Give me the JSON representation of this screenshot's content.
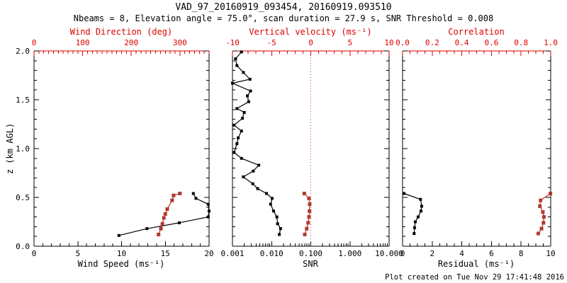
{
  "title": "VAD_97_20160919_093454, 20160919.093510",
  "subtitle": "Nbeams = 8, Elevation angle = 75.0°, scan duration = 27.9 s, SNR Threshold = 0.008",
  "footer": {
    "created_text": "Plot created on Tue Nov 29 17:41:48 2016"
  },
  "colors": {
    "axis_red": "#dd0000",
    "series_red": "#b03a2e",
    "series_black": "#000000",
    "zero_line_red": "#d04030",
    "axis_black": "#000000",
    "background": "#ffffff"
  },
  "chart_data": {
    "type": "line",
    "description": "VAD Doppler-lidar wind profile, three vertical-profile panels sharing height axis z 0-2 km AGL",
    "y_axis": {
      "label": "z (km AGL)",
      "range": [
        0,
        2
      ],
      "ticks": [
        {
          "v": 0.0,
          "label": "0.0"
        },
        {
          "v": 0.5,
          "label": "0.5"
        },
        {
          "v": 1.0,
          "label": "1.0"
        },
        {
          "v": 1.5,
          "label": "1.5"
        },
        {
          "v": 2.0,
          "label": "2.0"
        }
      ],
      "minor_step": 0.1
    },
    "panels": [
      {
        "id": "wind",
        "top_axis": {
          "label": "Wind Direction (deg)",
          "color": "red",
          "range": [
            0,
            360
          ],
          "minor_step": 10,
          "ticks": [
            {
              "v": 0,
              "label": "0"
            },
            {
              "v": 100,
              "label": "100"
            },
            {
              "v": 200,
              "label": "200"
            },
            {
              "v": 300,
              "label": "300"
            }
          ]
        },
        "bottom_axis": {
          "label": "Wind Speed (ms⁻¹)",
          "color": "black",
          "range": [
            0,
            20
          ],
          "minor_step": 1,
          "ticks": [
            {
              "v": 0,
              "label": "0"
            },
            {
              "v": 5,
              "label": "5"
            },
            {
              "v": 10,
              "label": "10"
            },
            {
              "v": 15,
              "label": "15"
            },
            {
              "v": 20,
              "label": "20"
            }
          ]
        },
        "series": [
          {
            "name": "wind_speed",
            "axis": "bottom",
            "color": "black",
            "points": [
              {
                "z": 0.11,
                "v": 9.7
              },
              {
                "z": 0.18,
                "v": 12.9
              },
              {
                "z": 0.24,
                "v": 16.6
              },
              {
                "z": 0.3,
                "v": 19.9
              },
              {
                "z": 0.36,
                "v": 20.0
              },
              {
                "z": 0.43,
                "v": 19.9
              },
              {
                "z": 0.49,
                "v": 18.5
              },
              {
                "z": 0.54,
                "v": 18.2
              }
            ]
          },
          {
            "name": "wind_direction",
            "axis": "top",
            "color": "red",
            "points": [
              {
                "z": 0.12,
                "v": 256
              },
              {
                "z": 0.18,
                "v": 261
              },
              {
                "z": 0.23,
                "v": 264
              },
              {
                "z": 0.29,
                "v": 267
              },
              {
                "z": 0.33,
                "v": 270
              },
              {
                "z": 0.38,
                "v": 274
              },
              {
                "z": 0.47,
                "v": 284
              },
              {
                "z": 0.52,
                "v": 287
              },
              {
                "z": 0.54,
                "v": 300
              }
            ]
          }
        ]
      },
      {
        "id": "snr",
        "top_axis": {
          "label": "Vertical velocity (ms⁻¹)",
          "color": "red",
          "range": [
            -10,
            10
          ],
          "minor_step": 1,
          "zero_line": true,
          "ticks": [
            {
              "v": -10,
              "label": "-10"
            },
            {
              "v": -5,
              "label": "-5"
            },
            {
              "v": 0,
              "label": "0"
            },
            {
              "v": 5,
              "label": "5"
            },
            {
              "v": 10,
              "label": "10"
            }
          ]
        },
        "bottom_axis": {
          "label": "SNR",
          "color": "black",
          "range": [
            0.001,
            10
          ],
          "scale": "log",
          "ticks": [
            {
              "v": 0.001,
              "label": "0.001"
            },
            {
              "v": 0.01,
              "label": "0.010"
            },
            {
              "v": 0.1,
              "label": "0.100"
            },
            {
              "v": 1,
              "label": "1.000"
            },
            {
              "v": 10,
              "label": "10.000"
            }
          ]
        },
        "series": [
          {
            "name": "snr",
            "axis": "bottom",
            "color": "black",
            "points": [
              {
                "z": 1.99,
                "v": 0.0017
              },
              {
                "z": 1.92,
                "v": 0.0012
              },
              {
                "z": 1.85,
                "v": 0.0013
              },
              {
                "z": 1.78,
                "v": 0.0019
              },
              {
                "z": 1.71,
                "v": 0.0028
              },
              {
                "z": 1.67,
                "v": 0.001
              },
              {
                "z": 1.59,
                "v": 0.0029
              },
              {
                "z": 1.54,
                "v": 0.0024
              },
              {
                "z": 1.48,
                "v": 0.0026
              },
              {
                "z": 1.41,
                "v": 0.0013
              },
              {
                "z": 1.37,
                "v": 0.002
              },
              {
                "z": 1.31,
                "v": 0.0018
              },
              {
                "z": 1.24,
                "v": 0.0011
              },
              {
                "z": 1.18,
                "v": 0.0017
              },
              {
                "z": 1.11,
                "v": 0.0014
              },
              {
                "z": 1.05,
                "v": 0.0013
              },
              {
                "z": 0.96,
                "v": 0.0011
              },
              {
                "z": 0.9,
                "v": 0.0017
              },
              {
                "z": 0.83,
                "v": 0.0047
              },
              {
                "z": 0.77,
                "v": 0.0034
              },
              {
                "z": 0.71,
                "v": 0.0019
              },
              {
                "z": 0.64,
                "v": 0.0033
              },
              {
                "z": 0.59,
                "v": 0.0044
              },
              {
                "z": 0.54,
                "v": 0.0074
              },
              {
                "z": 0.49,
                "v": 0.0103
              },
              {
                "z": 0.43,
                "v": 0.0094
              },
              {
                "z": 0.36,
                "v": 0.0112
              },
              {
                "z": 0.3,
                "v": 0.0136
              },
              {
                "z": 0.23,
                "v": 0.0142
              },
              {
                "z": 0.18,
                "v": 0.0169
              },
              {
                "z": 0.12,
                "v": 0.0157
              }
            ]
          },
          {
            "name": "vertical_velocity",
            "axis": "top",
            "color": "red",
            "points": [
              {
                "z": 0.54,
                "v": -0.83
              },
              {
                "z": 0.49,
                "v": -0.23
              },
              {
                "z": 0.43,
                "v": -0.14
              },
              {
                "z": 0.36,
                "v": -0.16
              },
              {
                "z": 0.3,
                "v": -0.23
              },
              {
                "z": 0.24,
                "v": -0.34
              },
              {
                "z": 0.18,
                "v": -0.52
              },
              {
                "z": 0.12,
                "v": -0.77
              }
            ]
          }
        ]
      },
      {
        "id": "residual",
        "top_axis": {
          "label": "Correlation",
          "color": "red",
          "range": [
            0,
            1
          ],
          "minor_step": 0.05,
          "ticks": [
            {
              "v": 0.0,
              "label": "0.0"
            },
            {
              "v": 0.2,
              "label": "0.2"
            },
            {
              "v": 0.4,
              "label": "0.4"
            },
            {
              "v": 0.6,
              "label": "0.6"
            },
            {
              "v": 0.8,
              "label": "0.8"
            },
            {
              "v": 1.0,
              "label": "1.0"
            }
          ]
        },
        "bottom_axis": {
          "label": "Residual (ms⁻¹)",
          "color": "black",
          "range": [
            0,
            10
          ],
          "minor_step": 0.5,
          "ticks": [
            {
              "v": 0,
              "label": "0"
            },
            {
              "v": 2,
              "label": "2"
            },
            {
              "v": 4,
              "label": "4"
            },
            {
              "v": 6,
              "label": "6"
            },
            {
              "v": 8,
              "label": "8"
            },
            {
              "v": 10,
              "label": "10"
            }
          ]
        },
        "series": [
          {
            "name": "residual",
            "axis": "bottom",
            "color": "black",
            "points": [
              {
                "z": 0.13,
                "v": 0.78
              },
              {
                "z": 0.19,
                "v": 0.81
              },
              {
                "z": 0.25,
                "v": 0.86
              },
              {
                "z": 0.3,
                "v": 1.05
              },
              {
                "z": 0.36,
                "v": 1.24
              },
              {
                "z": 0.41,
                "v": 1.29
              },
              {
                "z": 0.48,
                "v": 1.21
              },
              {
                "z": 0.54,
                "v": 0.1
              }
            ]
          },
          {
            "name": "correlation",
            "axis": "top",
            "color": "red",
            "points": [
              {
                "z": 0.13,
                "v": 0.916
              },
              {
                "z": 0.18,
                "v": 0.938
              },
              {
                "z": 0.24,
                "v": 0.951
              },
              {
                "z": 0.3,
                "v": 0.954
              },
              {
                "z": 0.35,
                "v": 0.947
              },
              {
                "z": 0.41,
                "v": 0.927
              },
              {
                "z": 0.47,
                "v": 0.932
              },
              {
                "z": 0.54,
                "v": 0.998
              }
            ]
          }
        ]
      }
    ]
  }
}
